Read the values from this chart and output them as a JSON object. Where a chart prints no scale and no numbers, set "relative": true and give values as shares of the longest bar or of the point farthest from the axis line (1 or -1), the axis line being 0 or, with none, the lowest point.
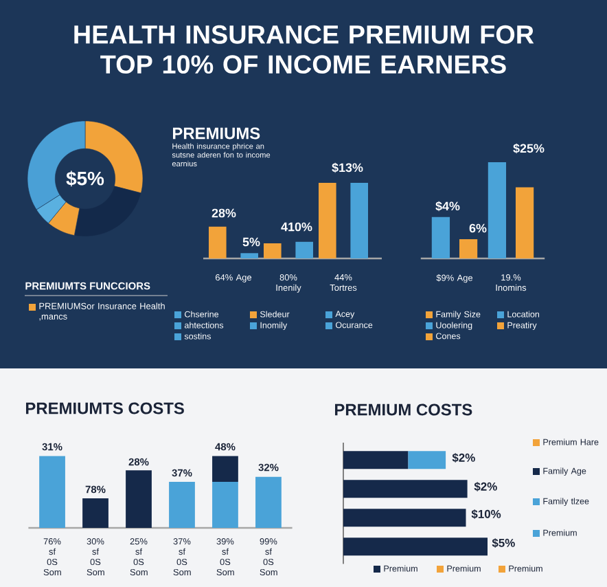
{
  "chart_data": [
    {
      "type": "donut",
      "title": "HEALTH INSURANCE PREMIUM FOR TOP 10% OF INCOME EARNERS",
      "annotations": [
        "$5%"
      ],
      "legend_title": "PREMIUMTS FUNCCIORS",
      "legend": "bottom",
      "categories": [
        "PREMIUMSor Insurance Health ,mancs",
        null,
        null,
        null,
        null
      ],
      "values": [
        29,
        24,
        8,
        5,
        34
      ],
      "colors": [
        "#f2a33a",
        "#13294a",
        "#f2a33a",
        "#5ab0e0",
        "#4aa0d6"
      ]
    },
    {
      "type": "bar",
      "title": "PREMIUMS",
      "subtitle": "Health insurance phrice an sutsne aderen fon to income earnius",
      "relative": true,
      "legend": "bottom",
      "categories": [
        "64% Age",
        "80% Inenily",
        "44% Tortres"
      ],
      "annotations": [
        "28%",
        "5%",
        "410%",
        "$13%",
        "Acey",
        "ahtections",
        "Inomily",
        "Ocurance",
        "sostins"
      ],
      "series": [
        {
          "name": "Sledeur",
          "color": "#f2a33a",
          "values": [
            0.42,
            0.2,
            1
          ]
        },
        {
          "name": "Chserine",
          "color": "#4aa3d8",
          "values": [
            0.07,
            0.22,
            1
          ]
        }
      ]
    },
    {
      "type": "bar",
      "relative": true,
      "legend": "bottom",
      "categories": [
        "$9% Age",
        "19.% Inomins"
      ],
      "annotations": [
        "$4%",
        "6%",
        "$25%",
        "Uoolering",
        "Preatiry",
        "Cones"
      ],
      "series": [
        {
          "name": "Location",
          "color": "#4aa3d8",
          "values": [
            0.43,
            1
          ]
        },
        {
          "name": "Family Size",
          "color": "#f2a33a",
          "values": [
            0.2,
            0.74
          ]
        }
      ]
    },
    {
      "type": "bar",
      "title": "PREMIUMTS COSTS",
      "relative": true,
      "stacked": true,
      "categories": [
        "76% sf 0S Som",
        "30% sf 0S Som",
        "25% sf 0S Som",
        "37% sf 0S Som",
        "39% sf 0S Som",
        "99% sf 0S Som"
      ],
      "annotations": [
        "31%",
        "78%",
        "28%",
        "37%",
        "48%",
        "32%"
      ],
      "series": [
        {
          "color": "#4aa3d8",
          "values": [
            1,
            null,
            null,
            0.64,
            0.64,
            0.71
          ]
        },
        {
          "color": "#15294a",
          "values": [
            null,
            0.41,
            0.8,
            null,
            0.36,
            null
          ]
        }
      ]
    },
    {
      "type": "bar",
      "title": "PREMIUM COSTS",
      "relative": true,
      "stacked": true,
      "orientation": "horizontal",
      "legend": "right",
      "categories": [
        null,
        null,
        null,
        null
      ],
      "annotations": [
        "$2%",
        "$2%",
        "$10%",
        "$5%",
        "Premium Hare",
        "Premium",
        "Premium",
        "Premium",
        "Premium"
      ],
      "series": [
        {
          "name": "Family Age",
          "color": "#15294a",
          "values": [
            0.45,
            0.86,
            0.85,
            1
          ]
        },
        {
          "name": "Family tlzee",
          "color": "#4aa3d8",
          "values": [
            0.26,
            null,
            null,
            null
          ]
        }
      ]
    }
  ]
}
